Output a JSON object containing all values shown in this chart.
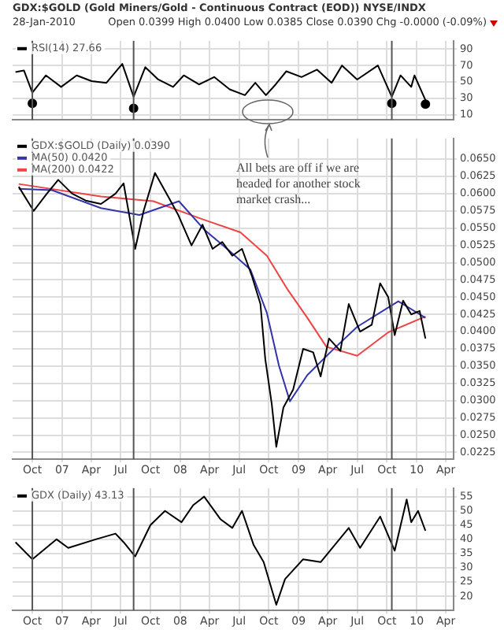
{
  "chart_data": [
    {
      "type": "line",
      "title": "GDX:$GOLD (Gold Miners/Gold - Continuous Contract (EOD)) NYSE/INDX",
      "subtitle": "28-Jan-2010",
      "annotations": [
        "Open 0.0399 High 0.0400 Low 0.0385 Close 0.0390 Chg -0.0000 (-0.09%)"
      ],
      "x": [
        "2006-08-10",
        "2006-09-05",
        "2006-10-01",
        "2006-11-12",
        "2006-12-29",
        "2007-02-15",
        "2007-04-02",
        "2007-05-18",
        "2007-07-06",
        "2007-08-10",
        "2007-09-15",
        "2007-10-25",
        "2007-12-10",
        "2008-01-12",
        "2008-02-28",
        "2008-04-15",
        "2008-06-02",
        "2008-07-19",
        "2008-08-20",
        "2008-09-22",
        "2008-10-22",
        "2008-11-24",
        "2009-01-10",
        "2009-02-27",
        "2009-04-13",
        "2009-05-15",
        "2009-07-01",
        "2009-09-03",
        "2009-10-16",
        "2009-11-12",
        "2009-12-15",
        "2009-12-25",
        "2010-01-28"
      ],
      "series": [
        {
          "name": "RSI(14) 27.66",
          "color": "#000000",
          "values": [
            62,
            64,
            37,
            58,
            44,
            58,
            51,
            49,
            72,
            32,
            68,
            53,
            44,
            58,
            47,
            56,
            41,
            34,
            49,
            34,
            47,
            63,
            56,
            65,
            49,
            70,
            53,
            70,
            32,
            58,
            44,
            58,
            28
          ]
        },
        {
          "type": "scatter",
          "marker": "circle",
          "color": "#000000",
          "x": [
            "2006-10-01",
            "2007-08-10",
            "2009-10-16",
            "2010-01-28"
          ],
          "values": [
            24,
            18,
            24,
            23
          ]
        }
      ],
      "xlim": [
        "2006-08-01",
        "2010-04-25"
      ],
      "ylim": [
        4,
        100
      ],
      "yticks": [
        10,
        30,
        50,
        70,
        90
      ],
      "xticks": [
        {
          "value": "2006-10-01",
          "label": null
        },
        {
          "value": "2007-01-01",
          "label": null
        },
        {
          "value": "2007-04-01",
          "label": null
        },
        {
          "value": "2007-07-01",
          "label": null
        },
        {
          "value": "2007-10-01",
          "label": null
        },
        {
          "value": "2008-01-01",
          "label": null
        },
        {
          "value": "2008-04-01",
          "label": null
        },
        {
          "value": "2008-07-01",
          "label": null
        },
        {
          "value": "2008-10-01",
          "label": null
        },
        {
          "value": "2009-01-01",
          "label": null
        },
        {
          "value": "2009-04-01",
          "label": null
        },
        {
          "value": "2009-07-01",
          "label": null
        },
        {
          "value": "2009-10-01",
          "label": null
        },
        {
          "value": "2010-01-01",
          "label": null
        },
        {
          "value": "2010-04-01",
          "label": null
        }
      ],
      "tick_labels": "y",
      "grid": true,
      "legend": "top left",
      "marker": "none",
      "ref_lines": [
        {
          "axis": "x",
          "value": "2006-10-01",
          "color": "#555555"
        },
        {
          "axis": "x",
          "value": "2007-08-10",
          "color": "#555555"
        },
        {
          "axis": "x",
          "value": "2009-10-16",
          "color": "#555555"
        }
      ]
    },
    {
      "type": "line",
      "annotations": [
        "All bets are off if we are headed for another stock market crash..."
      ],
      "series": [
        {
          "name": "GDX:$GOLD (Daily) 0.0390",
          "color": "#000000",
          "x": [
            "2006-08-20",
            "2006-10-05",
            "2006-11-15",
            "2006-12-20",
            "2007-02-01",
            "2007-03-15",
            "2007-05-01",
            "2007-06-15",
            "2007-07-10",
            "2007-08-15",
            "2007-09-10",
            "2007-10-15",
            "2007-11-20",
            "2007-12-25",
            "2008-02-05",
            "2008-03-10",
            "2008-04-10",
            "2008-05-10",
            "2008-06-10",
            "2008-07-10",
            "2008-08-10",
            "2008-09-05",
            "2008-09-20",
            "2008-10-10",
            "2008-10-24",
            "2008-11-15",
            "2008-12-15",
            "2009-01-15",
            "2009-02-15",
            "2009-03-10",
            "2009-04-05",
            "2009-05-10",
            "2009-06-05",
            "2009-07-10",
            "2009-08-15",
            "2009-09-10",
            "2009-10-05",
            "2009-10-25",
            "2009-11-20",
            "2009-12-15",
            "2010-01-10",
            "2010-01-28"
          ],
          "values": [
            0.061,
            0.0575,
            0.06,
            0.062,
            0.06,
            0.059,
            0.0585,
            0.06,
            0.0615,
            0.052,
            0.0575,
            0.063,
            0.06,
            0.057,
            0.0525,
            0.0555,
            0.052,
            0.053,
            0.051,
            0.052,
            0.048,
            0.044,
            0.036,
            0.0295,
            0.0233,
            0.029,
            0.0316,
            0.0375,
            0.037,
            0.0335,
            0.039,
            0.0372,
            0.044,
            0.04,
            0.041,
            0.047,
            0.045,
            0.0395,
            0.0445,
            0.0425,
            0.043,
            0.039
          ]
        },
        {
          "name": "MA(50) 0.0420",
          "color": "#3333aa",
          "x": [
            "2006-08-20",
            "2006-12-01",
            "2007-05-01",
            "2007-08-28",
            "2007-12-28",
            "2008-03-15",
            "2008-06-01",
            "2008-08-05",
            "2008-09-25",
            "2008-11-01",
            "2008-12-05",
            "2009-01-28",
            "2009-04-13",
            "2009-07-01",
            "2009-11-05",
            "2010-01-28"
          ],
          "values": [
            0.0607,
            0.0605,
            0.0579,
            0.0569,
            0.0589,
            0.0548,
            0.0517,
            0.049,
            0.0427,
            0.0351,
            0.0299,
            0.0337,
            0.0372,
            0.0407,
            0.0444,
            0.042
          ]
        },
        {
          "name": "MA(200) 0.0422",
          "color": "#ee4444",
          "x": [
            "2006-08-20",
            "2007-05-01",
            "2007-10-10",
            "2008-03-15",
            "2008-07-05",
            "2008-09-25",
            "2008-11-28",
            "2009-01-28",
            "2009-03-28",
            "2009-07-01",
            "2009-10-05",
            "2010-01-28"
          ],
          "values": [
            0.0614,
            0.0596,
            0.0589,
            0.0562,
            0.0544,
            0.051,
            0.0461,
            0.042,
            0.0378,
            0.0365,
            0.0399,
            0.0422
          ]
        }
      ],
      "xlim": [
        "2006-08-01",
        "2010-04-25"
      ],
      "ylim": [
        0.0215,
        0.068
      ],
      "yticks": [
        {
          "value": 0.0225,
          "label": "0.0225"
        },
        {
          "value": 0.025,
          "label": "0.0250"
        },
        {
          "value": 0.0275,
          "label": "0.0275"
        },
        {
          "value": 0.03,
          "label": "0.0300"
        },
        {
          "value": 0.0325,
          "label": "0.0325"
        },
        {
          "value": 0.035,
          "label": "0.0350"
        },
        {
          "value": 0.0375,
          "label": "0.0375"
        },
        {
          "value": 0.04,
          "label": "0.0400"
        },
        {
          "value": 0.0425,
          "label": "0.0425"
        },
        {
          "value": 0.045,
          "label": "0.0450"
        },
        {
          "value": 0.0475,
          "label": "0.0475"
        },
        {
          "value": 0.05,
          "label": "0.0500"
        },
        {
          "value": 0.0525,
          "label": "0.0525"
        },
        {
          "value": 0.055,
          "label": "0.0550"
        },
        {
          "value": 0.0575,
          "label": "0.0575"
        },
        {
          "value": 0.06,
          "label": "0.0600"
        },
        {
          "value": 0.0625,
          "label": "0.0625"
        },
        {
          "value": 0.065,
          "label": "0.0650"
        }
      ],
      "xticks": [
        {
          "value": "2006-10-01",
          "label": "Oct"
        },
        {
          "value": "2007-01-01",
          "label": "07"
        },
        {
          "value": "2007-04-01",
          "label": "Apr"
        },
        {
          "value": "2007-07-01",
          "label": "Jul"
        },
        {
          "value": "2007-10-01",
          "label": "Oct"
        },
        {
          "value": "2008-01-01",
          "label": "08"
        },
        {
          "value": "2008-04-01",
          "label": "Apr"
        },
        {
          "value": "2008-07-01",
          "label": "Jul"
        },
        {
          "value": "2008-10-01",
          "label": "Oct"
        },
        {
          "value": "2009-01-01",
          "label": "09"
        },
        {
          "value": "2009-04-01",
          "label": "Apr"
        },
        {
          "value": "2009-07-01",
          "label": "Jul"
        },
        {
          "value": "2009-10-01",
          "label": "Oct"
        },
        {
          "value": "2010-01-01",
          "label": "10"
        },
        {
          "value": "2010-04-01",
          "label": "Apr"
        }
      ],
      "grid": true,
      "legend": "top left",
      "marker": "none",
      "ref_lines": [
        {
          "axis": "x",
          "value": "2006-10-01",
          "color": "#555555"
        },
        {
          "axis": "x",
          "value": "2007-08-10",
          "color": "#555555"
        },
        {
          "axis": "x",
          "value": "2009-10-16",
          "color": "#555555"
        }
      ]
    },
    {
      "type": "line",
      "x": [
        "2006-08-10",
        "2006-10-01",
        "2006-12-15",
        "2007-01-20",
        "2007-04-15",
        "2007-06-15",
        "2007-07-10",
        "2007-08-15",
        "2007-10-01",
        "2007-11-15",
        "2008-01-05",
        "2008-02-10",
        "2008-03-15",
        "2008-05-05",
        "2008-06-10",
        "2008-07-10",
        "2008-08-15",
        "2008-09-15",
        "2008-10-24",
        "2008-11-20",
        "2009-01-15",
        "2009-03-10",
        "2009-06-05",
        "2009-07-10",
        "2009-09-10",
        "2009-10-25",
        "2009-12-01",
        "2009-12-15",
        "2010-01-05",
        "2010-01-28"
      ],
      "series": [
        {
          "name": "GDX (Daily) 43.13",
          "color": "#000000",
          "values": [
            39,
            33,
            40,
            37,
            40,
            42,
            39,
            34,
            45,
            50,
            46,
            52,
            55,
            47,
            44,
            50,
            38,
            32,
            17,
            26,
            33,
            32,
            44,
            37,
            48,
            36,
            54,
            46,
            50,
            43
          ]
        }
      ],
      "xlim": [
        "2006-08-01",
        "2010-04-25"
      ],
      "ylim": [
        15,
        58
      ],
      "yticks": [
        20,
        25,
        30,
        35,
        40,
        45,
        50,
        55
      ],
      "xticks": [
        {
          "value": "2006-10-01",
          "label": "Oct"
        },
        {
          "value": "2007-01-01",
          "label": "07"
        },
        {
          "value": "2007-04-01",
          "label": "Apr"
        },
        {
          "value": "2007-07-01",
          "label": "Jul"
        },
        {
          "value": "2007-10-01",
          "label": "Oct"
        },
        {
          "value": "2008-01-01",
          "label": "08"
        },
        {
          "value": "2008-04-01",
          "label": "Apr"
        },
        {
          "value": "2008-07-01",
          "label": "Jul"
        },
        {
          "value": "2008-10-01",
          "label": "Oct"
        },
        {
          "value": "2009-01-01",
          "label": "09"
        },
        {
          "value": "2009-04-01",
          "label": "Apr"
        },
        {
          "value": "2009-07-01",
          "label": "Jul"
        },
        {
          "value": "2009-10-01",
          "label": "Oct"
        },
        {
          "value": "2010-01-01",
          "label": "10"
        },
        {
          "value": "2010-04-01",
          "label": "Apr"
        }
      ],
      "grid": true,
      "legend": "top left",
      "marker": "none",
      "ref_lines": [
        {
          "axis": "x",
          "value": "2006-10-01",
          "color": "#555555"
        },
        {
          "axis": "x",
          "value": "2007-08-10",
          "color": "#555555"
        },
        {
          "axis": "x",
          "value": "2009-10-16",
          "color": "#555555"
        }
      ]
    }
  ]
}
